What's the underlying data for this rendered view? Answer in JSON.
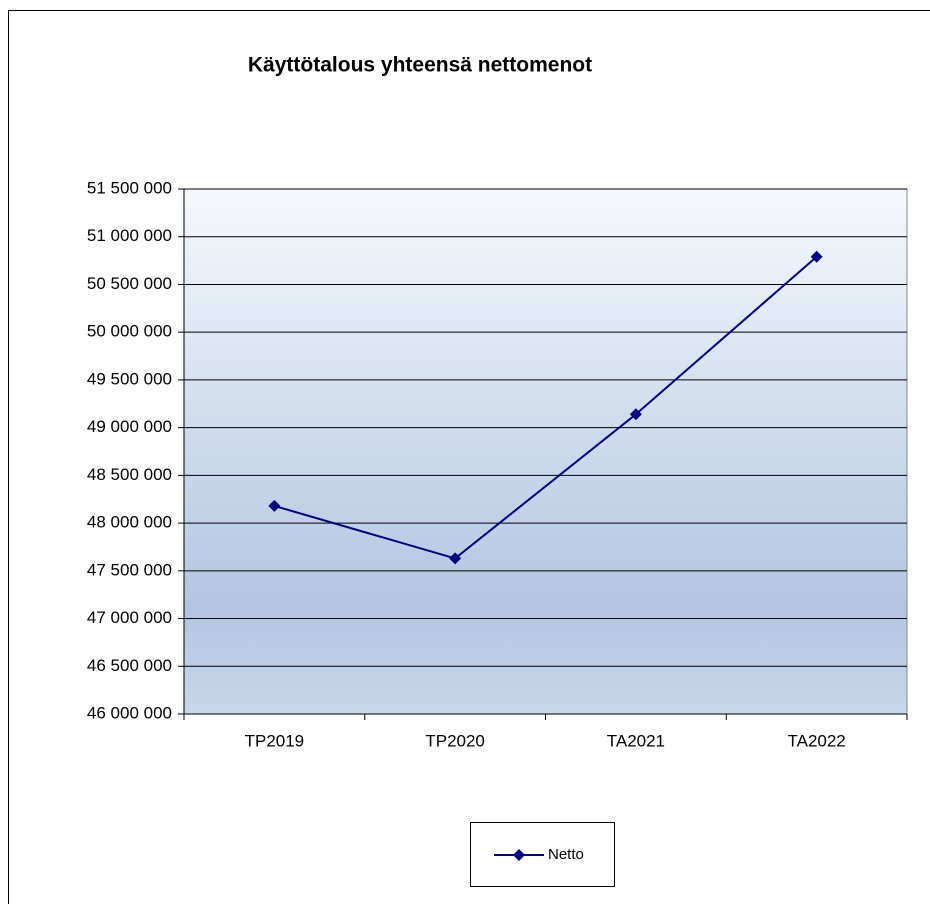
{
  "chart_data": {
    "type": "line",
    "title": "Käyttötalous yhteensä nettomenot",
    "categories": [
      "TP2019",
      "TP2020",
      "TA2021",
      "TA2022"
    ],
    "series": [
      {
        "name": "Netto",
        "color": "#000080",
        "values": [
          48180000,
          47630000,
          49140000,
          50790000
        ]
      }
    ],
    "ylim": [
      46000000,
      51500000
    ],
    "yticks": [
      {
        "value": 46000000,
        "label": "46 000 000"
      },
      {
        "value": 46500000,
        "label": "46 500 000"
      },
      {
        "value": 47000000,
        "label": "47 000 000"
      },
      {
        "value": 47500000,
        "label": "47 500 000"
      },
      {
        "value": 48000000,
        "label": "48 000 000"
      },
      {
        "value": 48500000,
        "label": "48 500 000"
      },
      {
        "value": 49000000,
        "label": "49 000 000"
      },
      {
        "value": 49500000,
        "label": "49 500 000"
      },
      {
        "value": 50000000,
        "label": "50 000 000"
      },
      {
        "value": 50500000,
        "label": "50 500 000"
      },
      {
        "value": 51000000,
        "label": "51 000 000"
      },
      {
        "value": 51500000,
        "label": "51 500 000"
      }
    ],
    "grid": true,
    "legend": "bottom"
  }
}
